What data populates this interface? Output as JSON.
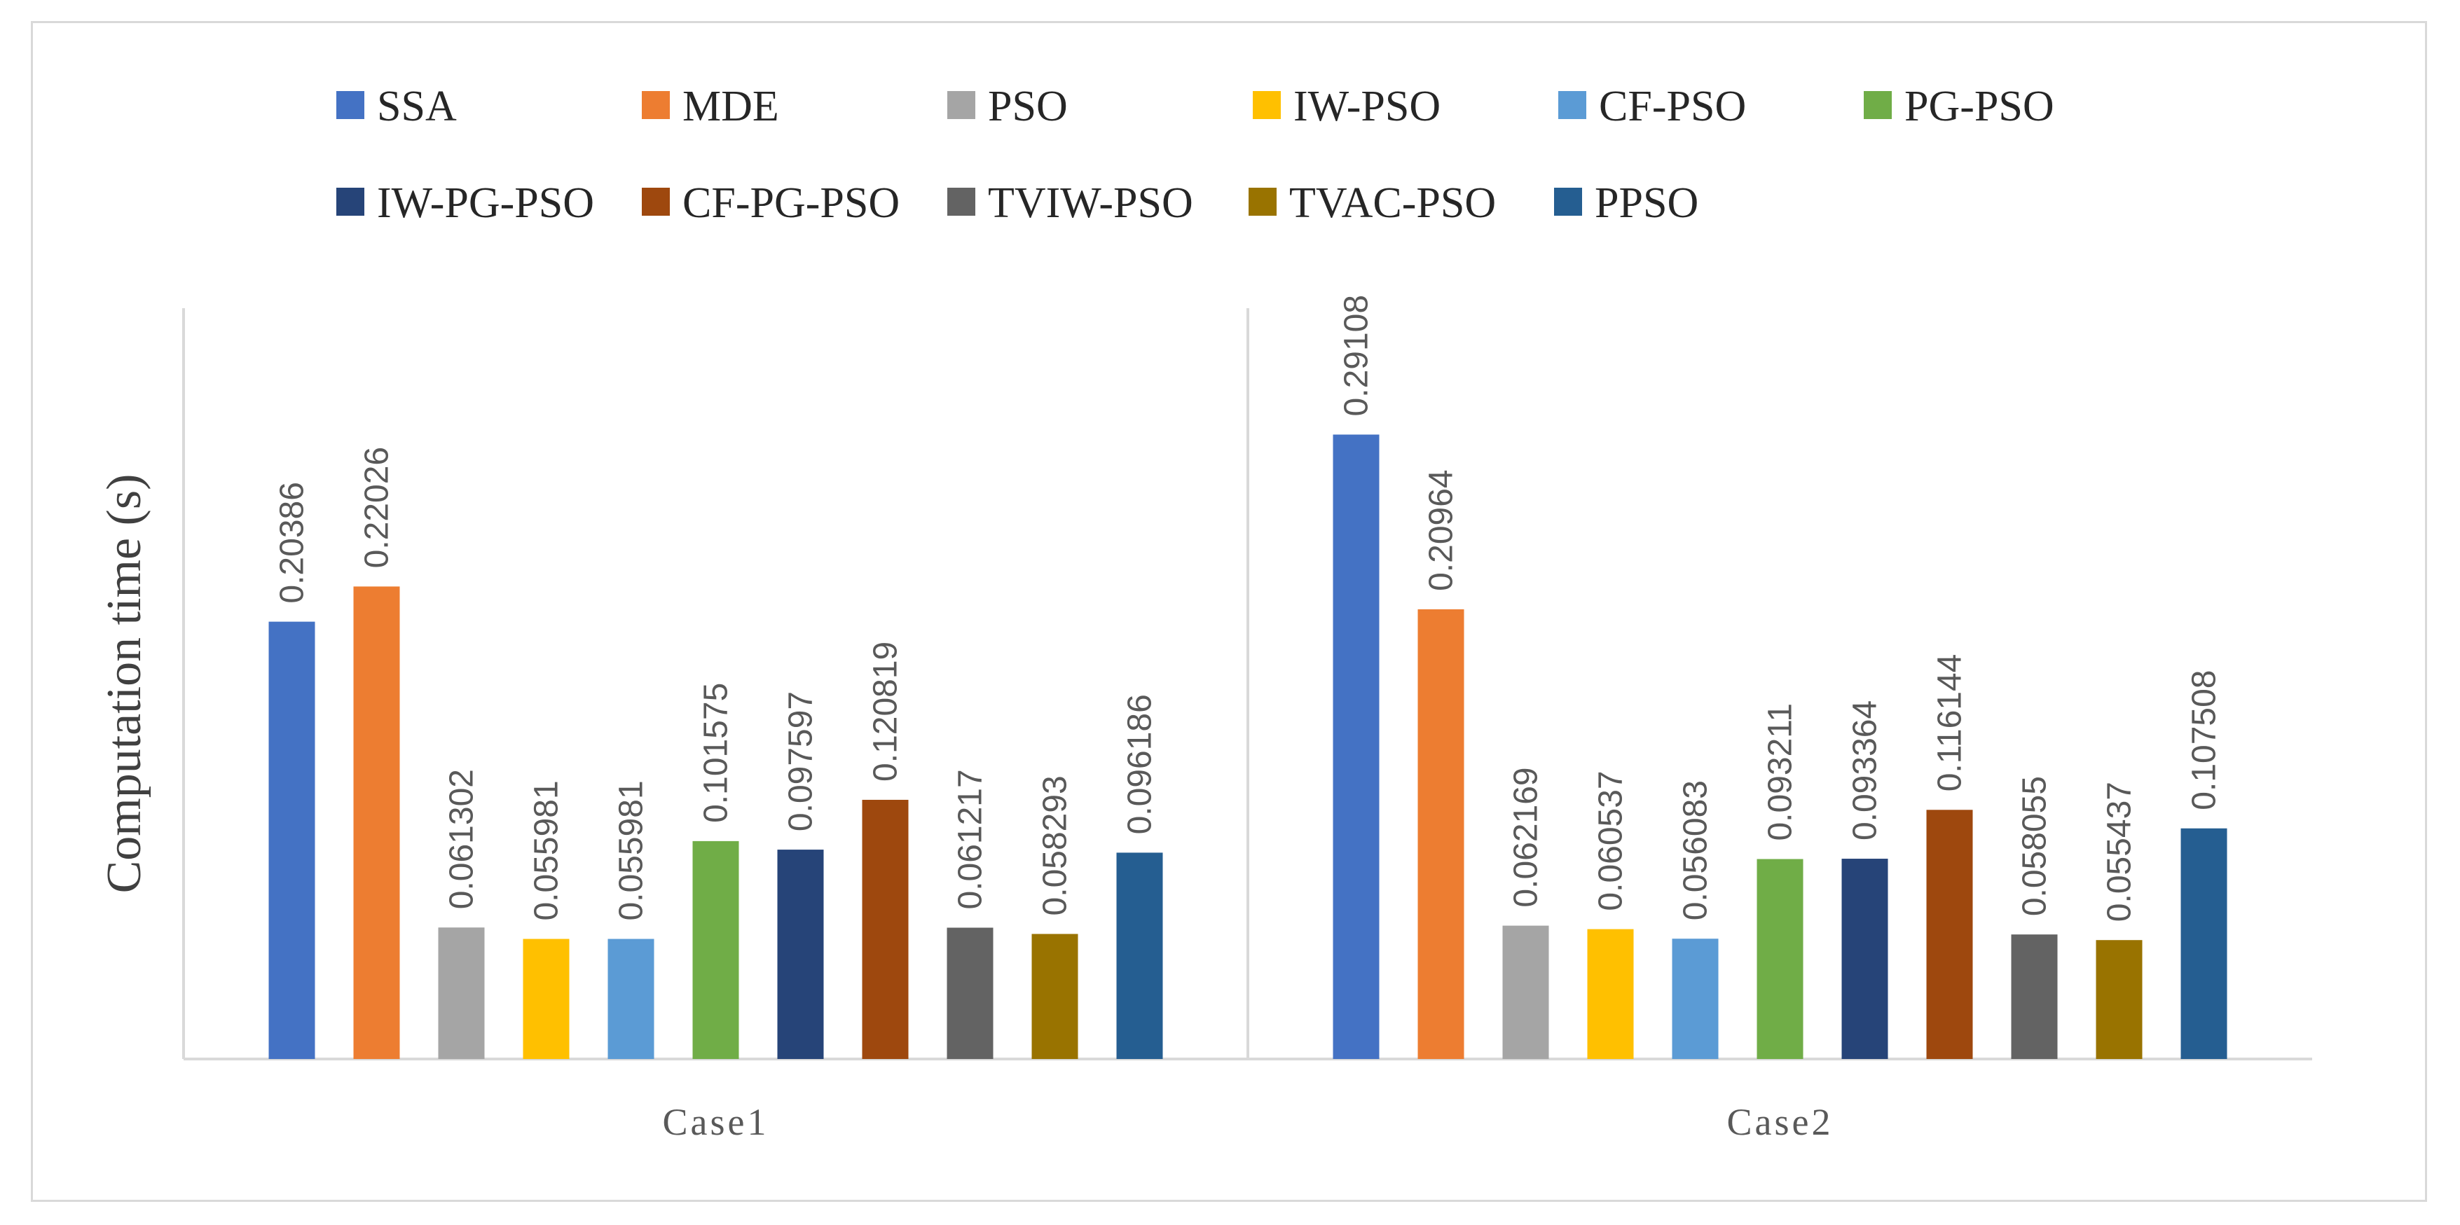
{
  "chart_data": {
    "type": "bar",
    "title": "",
    "xlabel": "",
    "ylabel": "Computation time (s)",
    "ylim": [
      0,
      0.35
    ],
    "grid": false,
    "legend_position": "top",
    "categories": [
      "Case1",
      "Case2"
    ],
    "series": [
      {
        "name": "SSA",
        "color": "#4472C4",
        "values": [
          0.20386,
          0.29108
        ],
        "labels": [
          "0.20386",
          "0.29108"
        ]
      },
      {
        "name": "MDE",
        "color": "#ED7D31",
        "values": [
          0.22026,
          0.20964
        ],
        "labels": [
          "0.22026",
          "0.20964"
        ]
      },
      {
        "name": "PSO",
        "color": "#A5A5A5",
        "values": [
          0.061302,
          0.062169
        ],
        "labels": [
          "0.061302",
          "0.062169"
        ]
      },
      {
        "name": "IW-PSO",
        "color": "#FFC000",
        "values": [
          0.055981,
          0.060537
        ],
        "labels": [
          "0.055981",
          "0.060537"
        ]
      },
      {
        "name": "CF-PSO",
        "color": "#5B9BD5",
        "values": [
          0.055981,
          0.056083
        ],
        "labels": [
          "0.055981",
          "0.056083"
        ]
      },
      {
        "name": "PG-PSO",
        "color": "#70AD47",
        "values": [
          0.101575,
          0.093211
        ],
        "labels": [
          "0.101575",
          "0.093211"
        ]
      },
      {
        "name": "IW-PG-PSO",
        "color": "#264478",
        "values": [
          0.097597,
          0.093364
        ],
        "labels": [
          "0.097597",
          "0.093364"
        ]
      },
      {
        "name": "CF-PG-PSO",
        "color": "#9E480E",
        "values": [
          0.120819,
          0.116144
        ],
        "labels": [
          "0.120819",
          "0.116144"
        ]
      },
      {
        "name": "TVIW-PSO",
        "color": "#636363",
        "values": [
          0.061217,
          0.058055
        ],
        "labels": [
          "0.061217",
          "0.058055"
        ]
      },
      {
        "name": "TVAC-PSO",
        "color": "#997300",
        "values": [
          0.058293,
          0.055437
        ],
        "labels": [
          "0.058293",
          "0.055437"
        ]
      },
      {
        "name": "PPSO",
        "color": "#255E91",
        "values": [
          0.096186,
          0.107508
        ],
        "labels": [
          "0.096186",
          "0.107508"
        ]
      }
    ]
  },
  "colors": {
    "axis": "#d9d9d9",
    "frame": "#d9d9d9"
  }
}
